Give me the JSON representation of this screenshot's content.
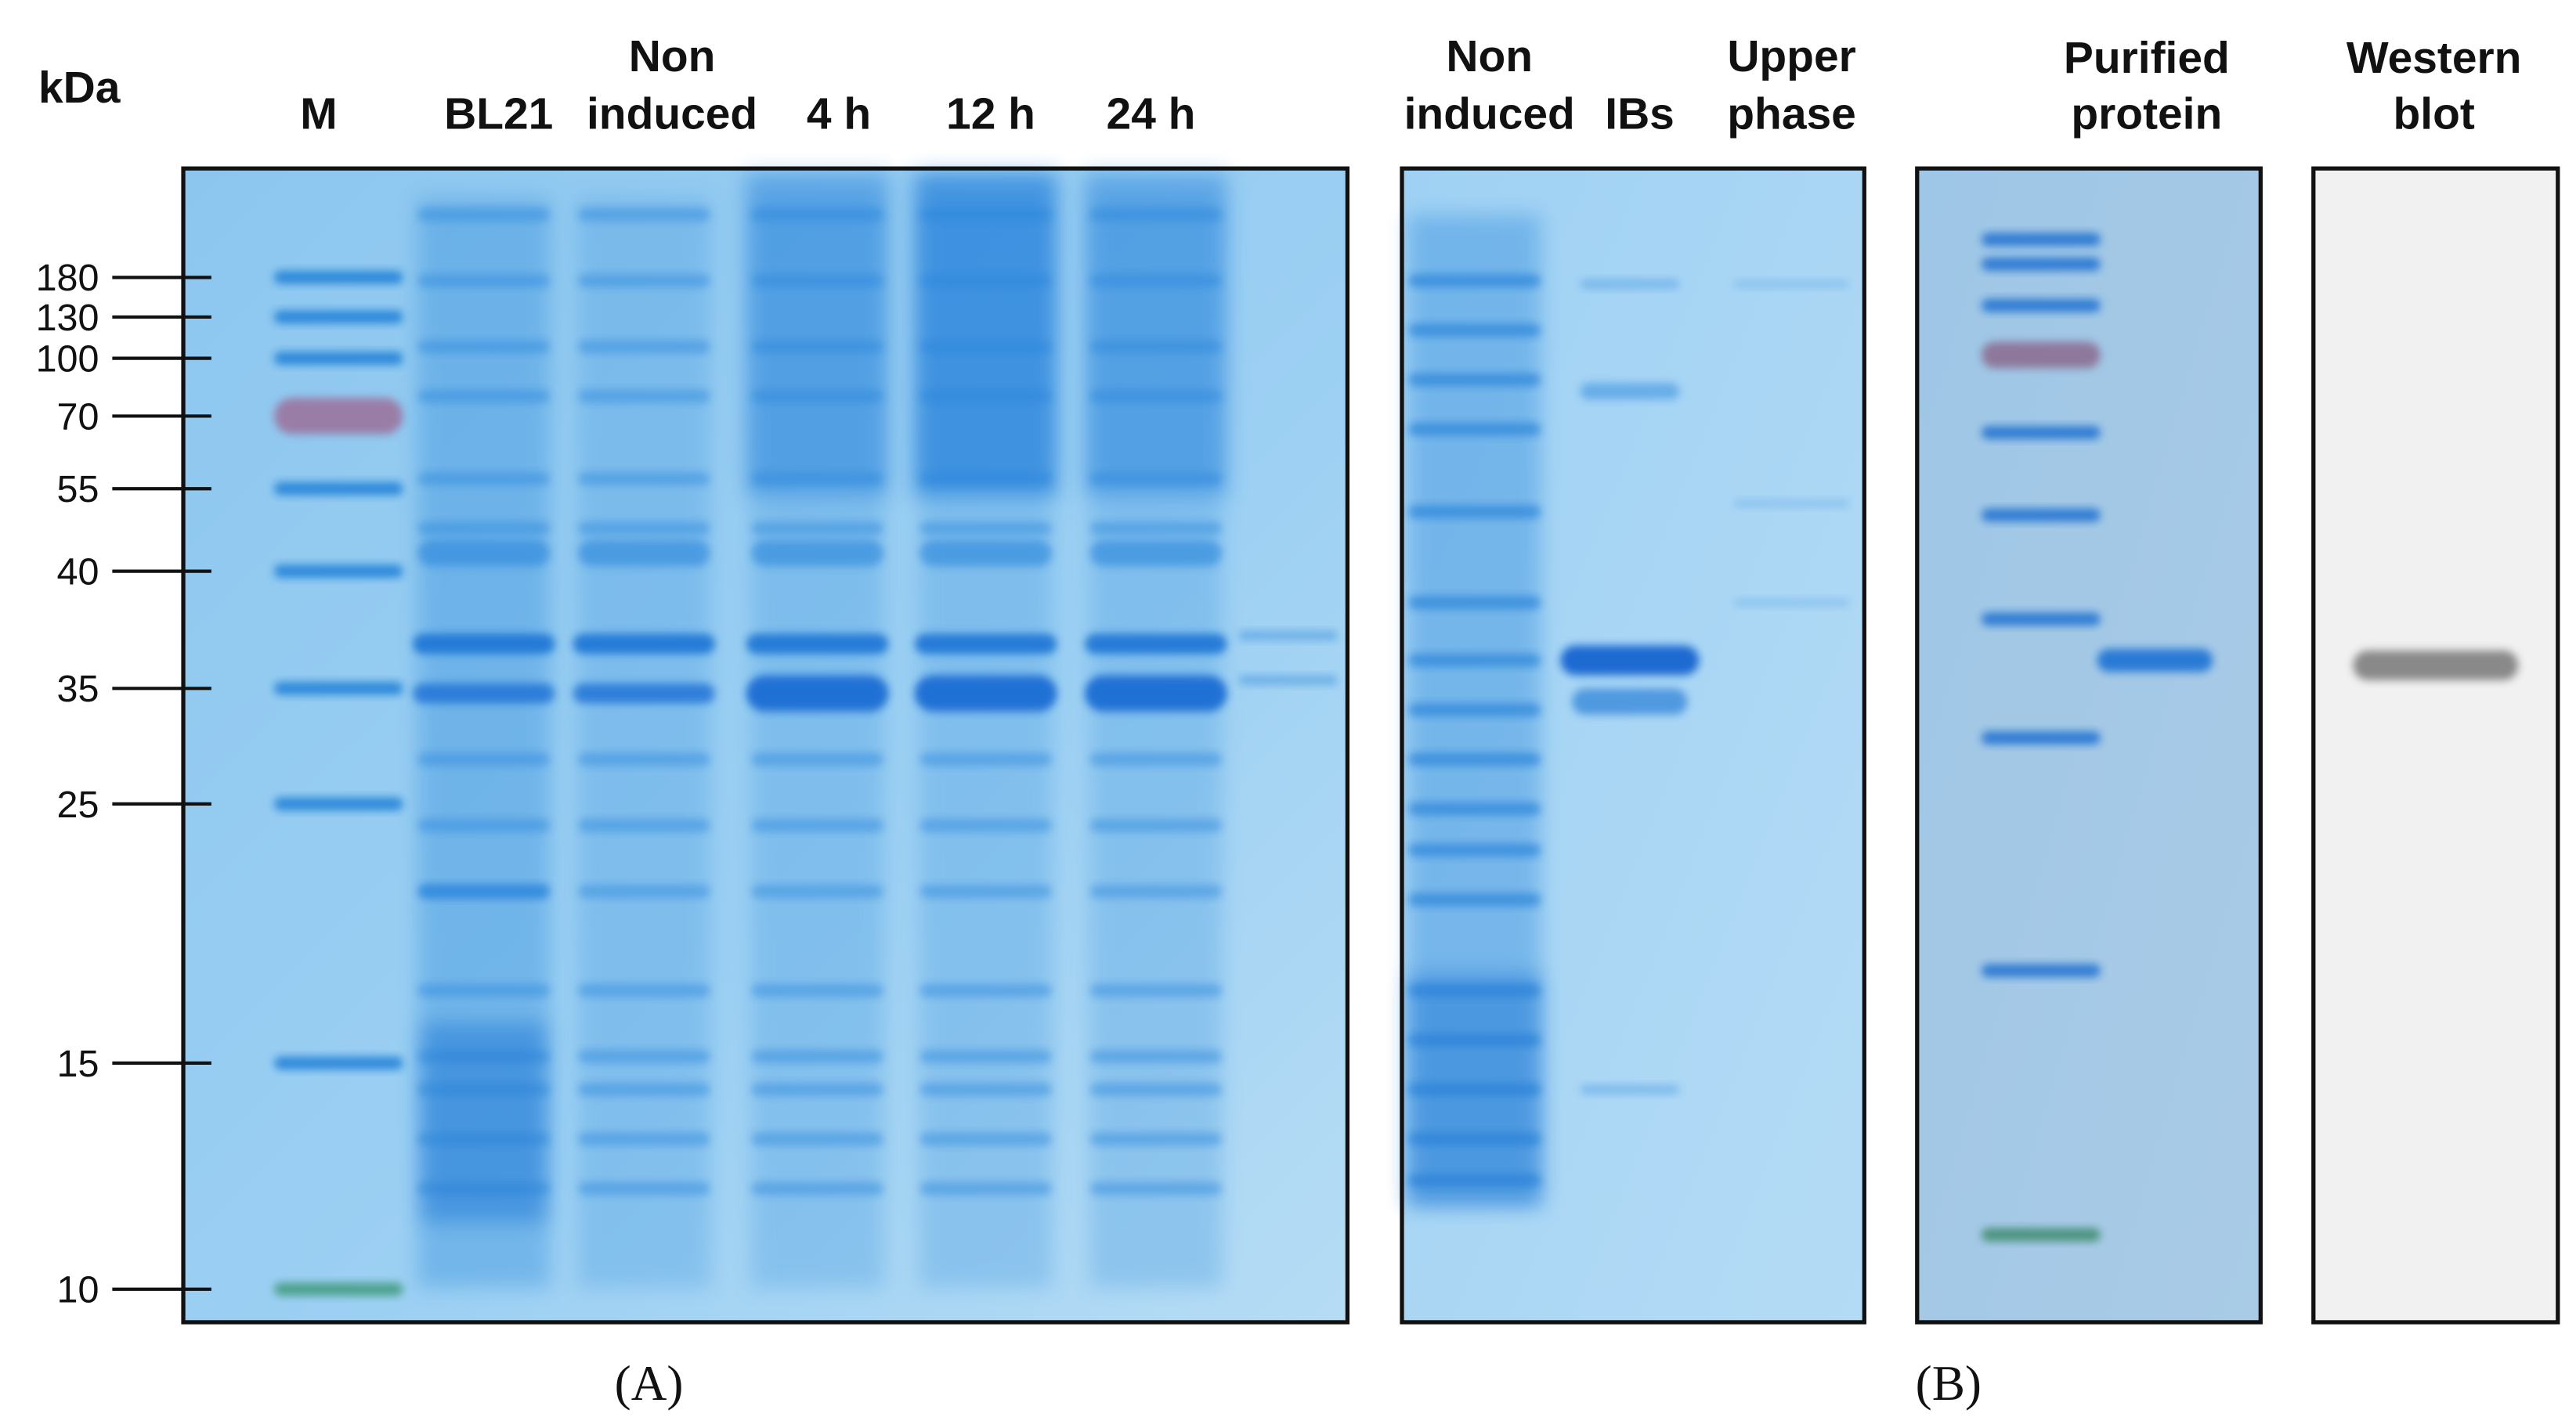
{
  "size_axis": {
    "unit": "kDa",
    "labels": [
      "180",
      "130",
      "100",
      "70",
      "55",
      "40",
      "35",
      "25",
      "15",
      "10"
    ]
  },
  "panels": [
    {
      "label": "(A)",
      "lanes": [
        [
          "M"
        ],
        [
          "BL21"
        ],
        [
          "Non",
          "induced"
        ],
        [
          "4 h"
        ],
        [
          "12 h"
        ],
        [
          "24 h"
        ]
      ]
    },
    {
      "label": "(B)",
      "lanes": [
        [
          "Non",
          "induced"
        ],
        [
          "IBs"
        ],
        [
          "Upper",
          "phase"
        ],
        [
          "Purified",
          "protein"
        ],
        [
          "Western",
          "blot"
        ]
      ]
    }
  ]
}
